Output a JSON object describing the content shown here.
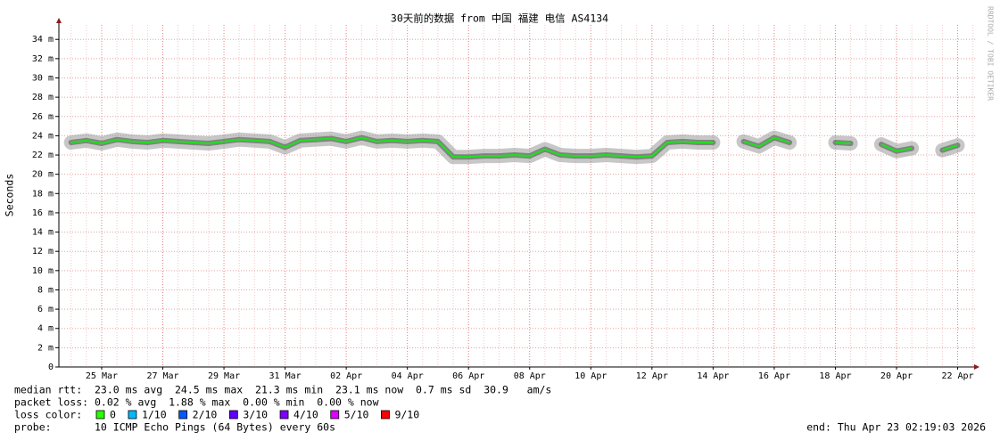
{
  "chart_data": {
    "type": "line",
    "title": "30天前的数据 from  中国 福建 电信 AS4134",
    "y_label": "Seconds",
    "watermark": "RRDTOOL / TOBI OETIKER",
    "categories": [
      null,
      null,
      "25 Mar",
      null,
      null,
      null,
      "27 Mar",
      null,
      null,
      null,
      "29 Mar",
      null,
      null,
      null,
      "31 Mar",
      null,
      null,
      null,
      "02 Apr",
      null,
      null,
      null,
      "04 Apr",
      null,
      null,
      null,
      "06 Apr",
      null,
      null,
      null,
      "08 Apr",
      null,
      null,
      null,
      "10 Apr",
      null,
      null,
      null,
      "12 Apr",
      null,
      null,
      null,
      "14 Apr",
      null,
      null,
      null,
      "16 Apr",
      null,
      null,
      null,
      "18 Apr",
      null,
      null,
      null,
      "20 Apr",
      null,
      null,
      null,
      "22 Apr",
      null
    ],
    "values": [
      0.0233,
      0.0235,
      0.0232,
      0.0236,
      0.0234,
      0.0233,
      0.0235,
      0.0234,
      0.0233,
      0.0232,
      0.0234,
      0.0236,
      0.0235,
      0.0234,
      0.0228,
      0.0235,
      0.0236,
      0.0237,
      0.0234,
      0.0238,
      0.0234,
      0.0235,
      0.0234,
      0.0235,
      0.0234,
      0.0218,
      0.0218,
      0.0219,
      0.0219,
      0.022,
      0.0219,
      0.0226,
      0.022,
      0.0219,
      0.0219,
      0.022,
      0.0219,
      0.0218,
      0.0219,
      0.0233,
      0.0234,
      0.0233,
      0.0233,
      null,
      0.0234,
      0.0229,
      0.0238,
      0.0233,
      null,
      null,
      0.0233,
      0.0232,
      null,
      0.0231,
      0.0224,
      0.0227,
      null,
      0.0225,
      0.023,
      null
    ],
    "color": "#22dd22",
    "ylim": [
      0,
      0.0355
    ],
    "yticks": [
      0,
      {
        "value": 0.002,
        "label": "2 m"
      },
      {
        "value": 0.004,
        "label": "4 m"
      },
      {
        "value": 0.006,
        "label": "6 m"
      },
      {
        "value": 0.008,
        "label": "8 m"
      },
      {
        "value": 0.01,
        "label": "10 m"
      },
      {
        "value": 0.012,
        "label": "12 m"
      },
      {
        "value": 0.014,
        "label": "14 m"
      },
      {
        "value": 0.016,
        "label": "16 m"
      },
      {
        "value": 0.018,
        "label": "18 m"
      },
      {
        "value": 0.02,
        "label": "20 m"
      },
      {
        "value": 0.022,
        "label": "22 m"
      },
      {
        "value": 0.024,
        "label": "24 m"
      },
      {
        "value": 0.026,
        "label": "26 m"
      },
      {
        "value": 0.028,
        "label": "28 m"
      },
      {
        "value": 0.03,
        "label": "30 m"
      },
      {
        "value": 0.032,
        "label": "32 m"
      },
      {
        "value": 0.034,
        "label": "34 m"
      }
    ],
    "grid": true
  },
  "stats": {
    "median_rtt": "median rtt:  23.0 ms avg  24.5 ms max  21.3 ms min  23.1 ms now  0.7 ms sd  30.9   am/s",
    "packet_loss": "packet loss: 0.02 % avg  1.88 % max  0.00 % min  0.00 % now",
    "loss_color_label": "loss color:",
    "loss_colors": [
      {
        "label": "0",
        "color": "#26ff00"
      },
      {
        "label": "1/10",
        "color": "#00b8ff"
      },
      {
        "label": "2/10",
        "color": "#0059ff"
      },
      {
        "label": "3/10",
        "color": "#5e00ff"
      },
      {
        "label": "4/10",
        "color": "#7e00ff"
      },
      {
        "label": "5/10",
        "color": "#dd00ff"
      },
      {
        "label": "9/10",
        "color": "#ff0000"
      }
    ],
    "probe": "probe:       10 ICMP Echo Pings (64 Bytes) every 60s",
    "end": "end: Thu Apr 23 02:19:03 2026"
  }
}
